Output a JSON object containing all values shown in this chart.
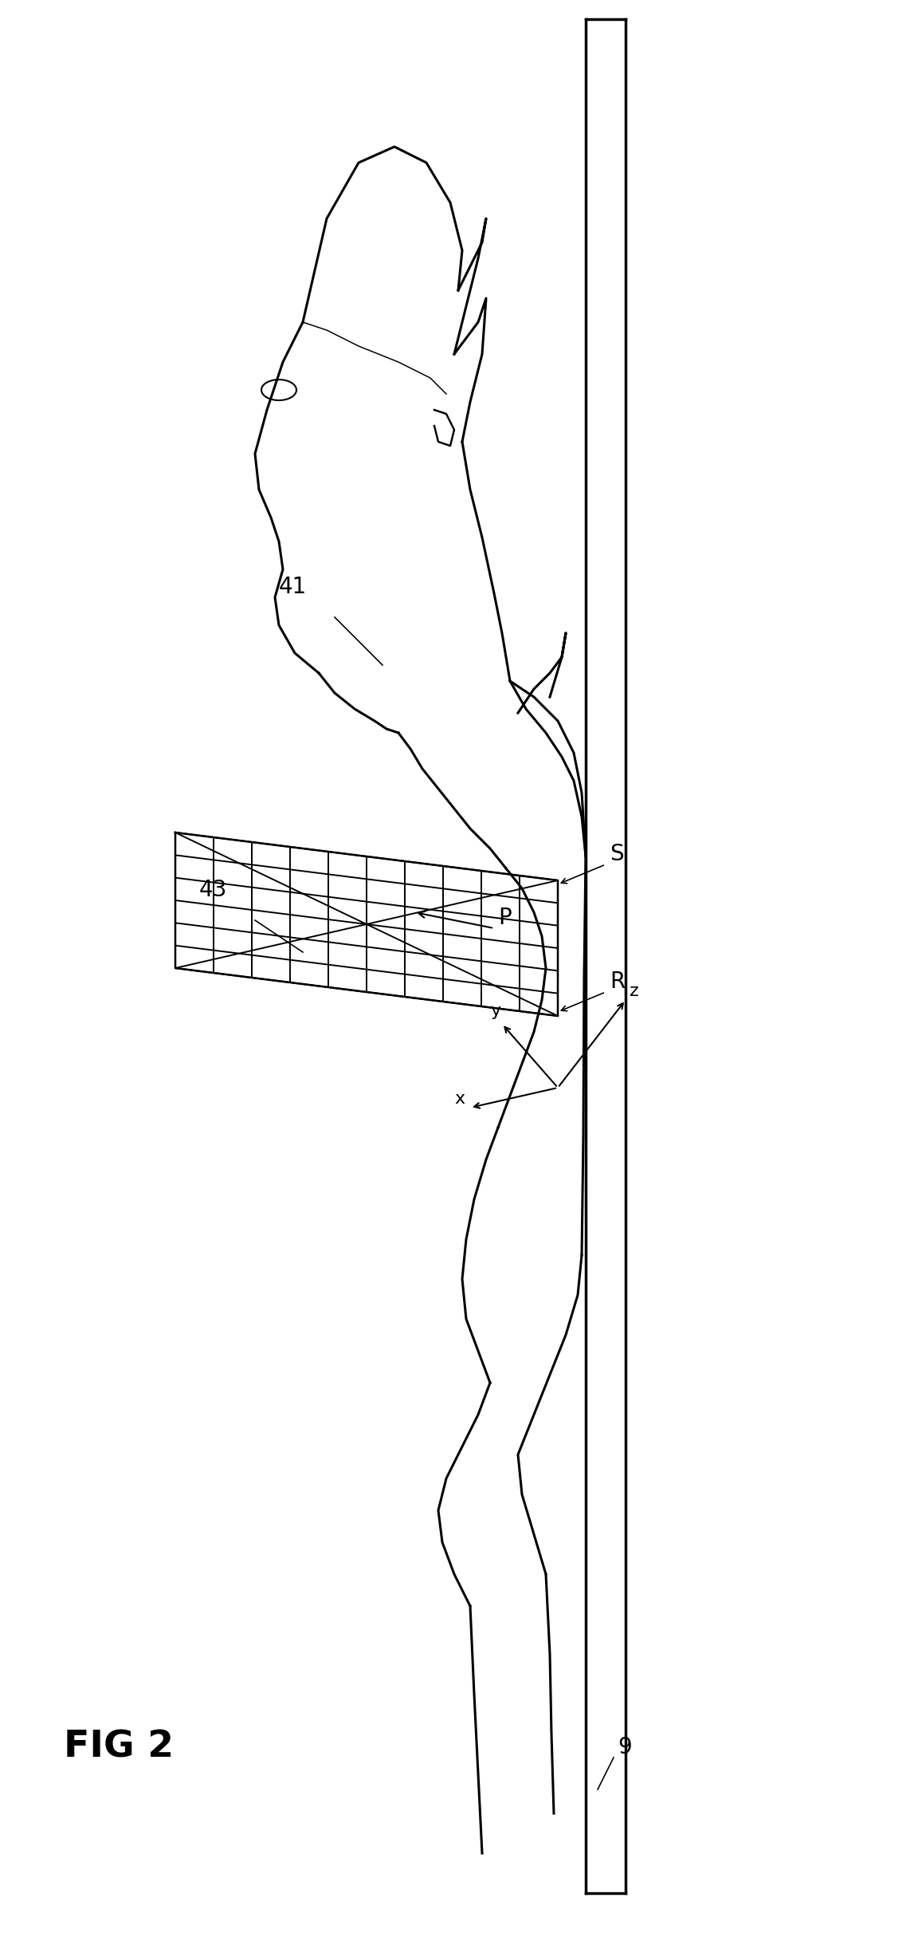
{
  "bg_color": "#ffffff",
  "line_color": "#000000",
  "fig_label": "FIG 2",
  "label_41": "41",
  "label_43": "43",
  "label_P": "P",
  "label_S": "S",
  "label_R": "R",
  "label_9": "9",
  "label_x": "x",
  "label_y": "y",
  "label_z": "z",
  "lw_body": 2.2,
  "lw_grid": 1.4,
  "lw_board": 2.5
}
